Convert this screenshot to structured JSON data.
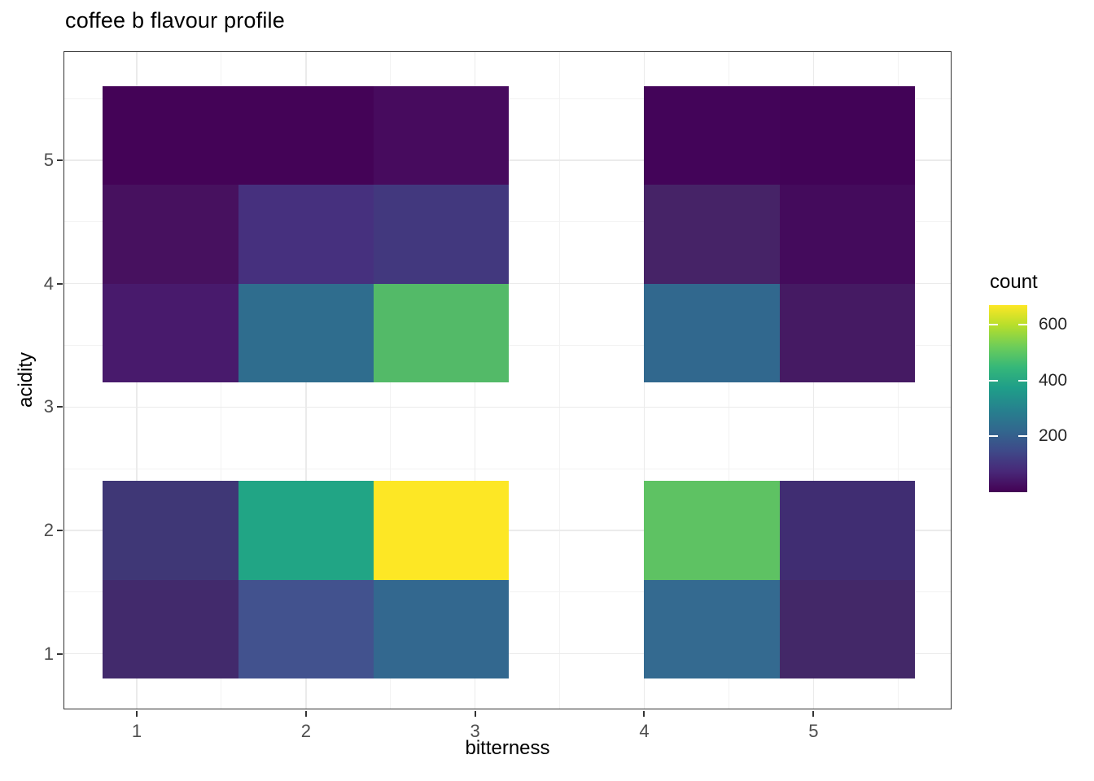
{
  "chart_data": {
    "type": "heatmap",
    "title": "coffee b flavour profile",
    "xlabel": "bitterness",
    "ylabel": "acidity",
    "x_ticks": [
      1,
      2,
      3,
      4,
      5
    ],
    "y_ticks": [
      1,
      2,
      3,
      4,
      5
    ],
    "xlim": [
      0.56,
      5.84
    ],
    "ylim": [
      0.56,
      5.84
    ],
    "bin_width": 0.8,
    "grid": "major+minor",
    "legend": {
      "title": "count",
      "position": "right",
      "ticks": [
        200,
        400,
        600
      ],
      "domain": [
        0,
        670
      ],
      "palette": "viridis",
      "gradient_stops": [
        "#440154",
        "#482878",
        "#3E4A89",
        "#31688E",
        "#26828E",
        "#1F9E89",
        "#35B779",
        "#6DCD59",
        "#B4DE2C",
        "#FDE725"
      ]
    },
    "tiles": [
      {
        "x": 1.2,
        "y": 5.2,
        "count": 8,
        "color": "#440357"
      },
      {
        "x": 2.0,
        "y": 5.2,
        "count": 8,
        "color": "#440357"
      },
      {
        "x": 2.8,
        "y": 5.2,
        "count": 40,
        "color": "#470B5E"
      },
      {
        "x": 4.4,
        "y": 5.2,
        "count": 12,
        "color": "#430459"
      },
      {
        "x": 5.2,
        "y": 5.2,
        "count": 10,
        "color": "#420357"
      },
      {
        "x": 1.2,
        "y": 4.4,
        "count": 48,
        "color": "#47115F"
      },
      {
        "x": 2.0,
        "y": 4.4,
        "count": 100,
        "color": "#46307E"
      },
      {
        "x": 2.8,
        "y": 4.4,
        "count": 130,
        "color": "#42387E"
      },
      {
        "x": 4.4,
        "y": 4.4,
        "count": 70,
        "color": "#462367"
      },
      {
        "x": 5.2,
        "y": 4.4,
        "count": 28,
        "color": "#440B5C"
      },
      {
        "x": 1.2,
        "y": 3.6,
        "count": 58,
        "color": "#481A6C"
      },
      {
        "x": 2.0,
        "y": 3.6,
        "count": 240,
        "color": "#2F6D8E"
      },
      {
        "x": 2.8,
        "y": 3.6,
        "count": 490,
        "color": "#53BA68"
      },
      {
        "x": 4.4,
        "y": 3.6,
        "count": 230,
        "color": "#31688E"
      },
      {
        "x": 5.2,
        "y": 3.6,
        "count": 55,
        "color": "#451A63"
      },
      {
        "x": 1.2,
        "y": 2.0,
        "count": 125,
        "color": "#3F3776"
      },
      {
        "x": 2.0,
        "y": 2.0,
        "count": 390,
        "color": "#21A585"
      },
      {
        "x": 2.8,
        "y": 2.0,
        "count": 660,
        "color": "#FDE725"
      },
      {
        "x": 4.4,
        "y": 2.0,
        "count": 520,
        "color": "#5EC263"
      },
      {
        "x": 5.2,
        "y": 2.0,
        "count": 90,
        "color": "#402D72"
      },
      {
        "x": 1.2,
        "y": 1.2,
        "count": 80,
        "color": "#422A6C"
      },
      {
        "x": 2.0,
        "y": 1.2,
        "count": 170,
        "color": "#42528E"
      },
      {
        "x": 2.8,
        "y": 1.2,
        "count": 235,
        "color": "#33688F"
      },
      {
        "x": 4.4,
        "y": 1.2,
        "count": 235,
        "color": "#346A90"
      },
      {
        "x": 5.2,
        "y": 1.2,
        "count": 75,
        "color": "#432868"
      }
    ]
  },
  "theme": {
    "background": "#FFFFFF",
    "panel_border": "#333333",
    "grid_major": "#EBEBEB",
    "grid_minor": "#F2F2F2",
    "tick_mark": "#333333",
    "axis_text": "#4D4D4D",
    "title_color": "#000000"
  }
}
